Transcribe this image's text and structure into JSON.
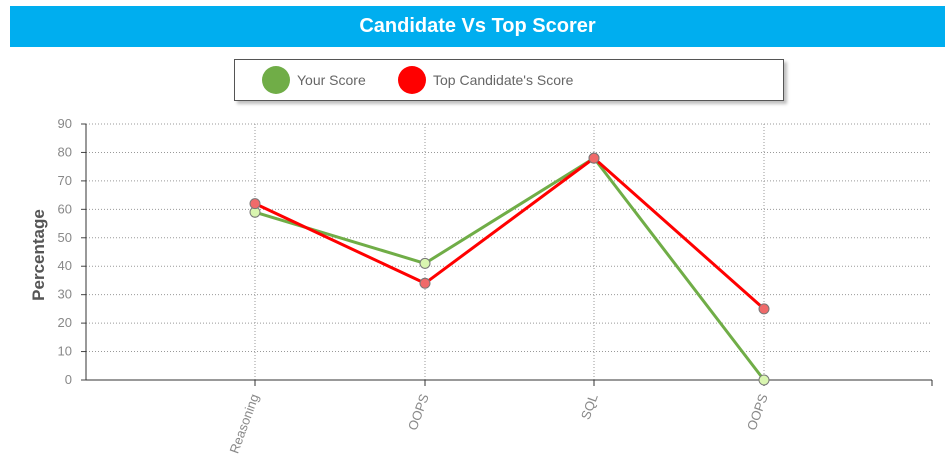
{
  "chart_data": {
    "type": "line",
    "title": "Candidate Vs Top Scorer",
    "categories": [
      "Reasoning",
      "OOPS",
      "SQL",
      "OOPS"
    ],
    "series": [
      {
        "name": "Your Score",
        "values": [
          59,
          41,
          78,
          0
        ],
        "color": "#70ad47",
        "marker_color": "#d9f5b0"
      },
      {
        "name": "Top Candidate's Score",
        "values": [
          62,
          34,
          78,
          25
        ],
        "color": "#ff0000",
        "marker_color": "#f06a6a"
      }
    ],
    "xlabel": "",
    "ylabel": "Percentage",
    "ylim": [
      0,
      90
    ],
    "yticks": [
      0,
      10,
      20,
      30,
      40,
      50,
      60,
      70,
      80,
      90
    ],
    "grid": true,
    "legend_position": "top"
  },
  "colors": {
    "header_bg": "#00aeef",
    "header_text": "#ffffff"
  }
}
